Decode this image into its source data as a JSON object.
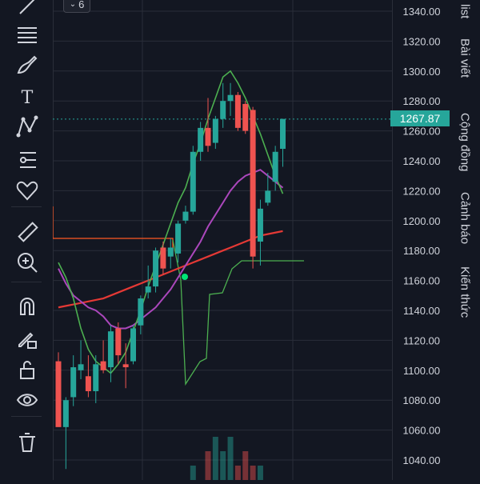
{
  "collapse_badge": {
    "count": "6"
  },
  "right_tabs": [
    "list",
    "Bài viết",
    "Cộng đồng",
    "Cảnh báo",
    "Kiến thức"
  ],
  "toolbar": {
    "tools": [
      "trend-line-icon",
      "fib-retracement-icon",
      "brush-icon",
      "text-icon",
      "pattern-icon",
      "forecast-icon",
      "heart-icon",
      "ruler-icon",
      "zoom-in-icon",
      "magnet-icon",
      "lock-pencil-icon",
      "unlock-icon",
      "eye-icon",
      "trash-icon"
    ]
  },
  "colors": {
    "background": "#131722",
    "up": "#26a69a",
    "down": "#ef5350",
    "ma_fast": "#4caf50",
    "ma_slow": "#e53935",
    "ma_mid": "#ab47bc",
    "stepline": "#4caf50",
    "hline": "#ff5722",
    "grid": "#2a2e39"
  },
  "chart_data": {
    "type": "candlestick",
    "ylim": [
      1030,
      1345
    ],
    "yticks": [
      "1340.00",
      "1320.00",
      "1300.00",
      "1280.00",
      "1260.00",
      "1240.00",
      "1220.00",
      "1200.00",
      "1180.00",
      "1160.00",
      "1140.00",
      "1120.00",
      "1100.00",
      "1080.00",
      "1060.00",
      "1040.00"
    ],
    "last_price": "1267.87",
    "candles": [
      {
        "o": 1106,
        "h": 1112,
        "l": 1064,
        "c": 1062
      },
      {
        "o": 1062,
        "h": 1082,
        "l": 1034,
        "c": 1080
      },
      {
        "o": 1082,
        "h": 1110,
        "l": 1076,
        "c": 1102
      },
      {
        "o": 1100,
        "h": 1120,
        "l": 1094,
        "c": 1104
      },
      {
        "o": 1096,
        "h": 1110,
        "l": 1082,
        "c": 1086
      },
      {
        "o": 1086,
        "h": 1110,
        "l": 1078,
        "c": 1104
      },
      {
        "o": 1106,
        "h": 1120,
        "l": 1098,
        "c": 1100
      },
      {
        "o": 1102,
        "h": 1130,
        "l": 1092,
        "c": 1126
      },
      {
        "o": 1128,
        "h": 1132,
        "l": 1104,
        "c": 1110
      },
      {
        "o": 1104,
        "h": 1118,
        "l": 1088,
        "c": 1102
      },
      {
        "o": 1106,
        "h": 1130,
        "l": 1104,
        "c": 1128
      },
      {
        "o": 1130,
        "h": 1150,
        "l": 1124,
        "c": 1148
      },
      {
        "o": 1152,
        "h": 1170,
        "l": 1148,
        "c": 1156
      },
      {
        "o": 1156,
        "h": 1182,
        "l": 1152,
        "c": 1180
      },
      {
        "o": 1182,
        "h": 1186,
        "l": 1164,
        "c": 1168
      },
      {
        "o": 1176,
        "h": 1188,
        "l": 1168,
        "c": 1182
      },
      {
        "o": 1178,
        "h": 1200,
        "l": 1172,
        "c": 1198
      },
      {
        "o": 1200,
        "h": 1210,
        "l": 1198,
        "c": 1206
      },
      {
        "o": 1206,
        "h": 1250,
        "l": 1204,
        "c": 1246
      },
      {
        "o": 1246,
        "h": 1266,
        "l": 1240,
        "c": 1262
      },
      {
        "o": 1262,
        "h": 1282,
        "l": 1246,
        "c": 1250
      },
      {
        "o": 1252,
        "h": 1270,
        "l": 1248,
        "c": 1268
      },
      {
        "o": 1268,
        "h": 1292,
        "l": 1262,
        "c": 1280
      },
      {
        "o": 1280,
        "h": 1292,
        "l": 1270,
        "c": 1284
      },
      {
        "o": 1284,
        "h": 1286,
        "l": 1260,
        "c": 1262
      },
      {
        "o": 1278,
        "h": 1280,
        "l": 1258,
        "c": 1260
      },
      {
        "o": 1274,
        "h": 1276,
        "l": 1168,
        "c": 1176
      },
      {
        "o": 1186,
        "h": 1214,
        "l": 1170,
        "c": 1208
      },
      {
        "o": 1212,
        "h": 1232,
        "l": 1210,
        "c": 1220
      },
      {
        "o": 1226,
        "h": 1250,
        "l": 1220,
        "c": 1246
      },
      {
        "o": 1248,
        "h": 1268,
        "l": 1236,
        "c": 1268
      }
    ],
    "ma_fast": [
      1172,
      1162,
      1148,
      1128,
      1114,
      1106,
      1102,
      1098,
      1104,
      1112,
      1126,
      1140,
      1156,
      1170,
      1184,
      1198,
      1212,
      1222,
      1238,
      1252,
      1268,
      1282,
      1296,
      1300,
      1292,
      1282,
      1270,
      1258,
      1244,
      1230,
      1218
    ],
    "ma_mid": [
      1168,
      1158,
      1150,
      1146,
      1142,
      1140,
      1136,
      1130,
      1128,
      1128,
      1130,
      1134,
      1138,
      1142,
      1148,
      1154,
      1162,
      1170,
      1178,
      1186,
      1196,
      1204,
      1212,
      1220,
      1226,
      1230,
      1232,
      1234,
      1230,
      1226,
      1222
    ],
    "ma_slow": [
      1142,
      1143,
      1144,
      1145,
      1146,
      1147,
      1148,
      1150,
      1152,
      1154,
      1156,
      1158,
      1160,
      1162,
      1164,
      1166,
      1168,
      1170,
      1172,
      1174,
      1176,
      1178,
      1180,
      1182,
      1184,
      1186,
      1188,
      1190,
      1191,
      1192,
      1193
    ],
    "volume": [
      0,
      0,
      0,
      0,
      0,
      0,
      0,
      0,
      0,
      0,
      0,
      0,
      0,
      0,
      0,
      0,
      0,
      0,
      1,
      0,
      2,
      3,
      2,
      3,
      1,
      2,
      1,
      1,
      0,
      0,
      0
    ]
  }
}
